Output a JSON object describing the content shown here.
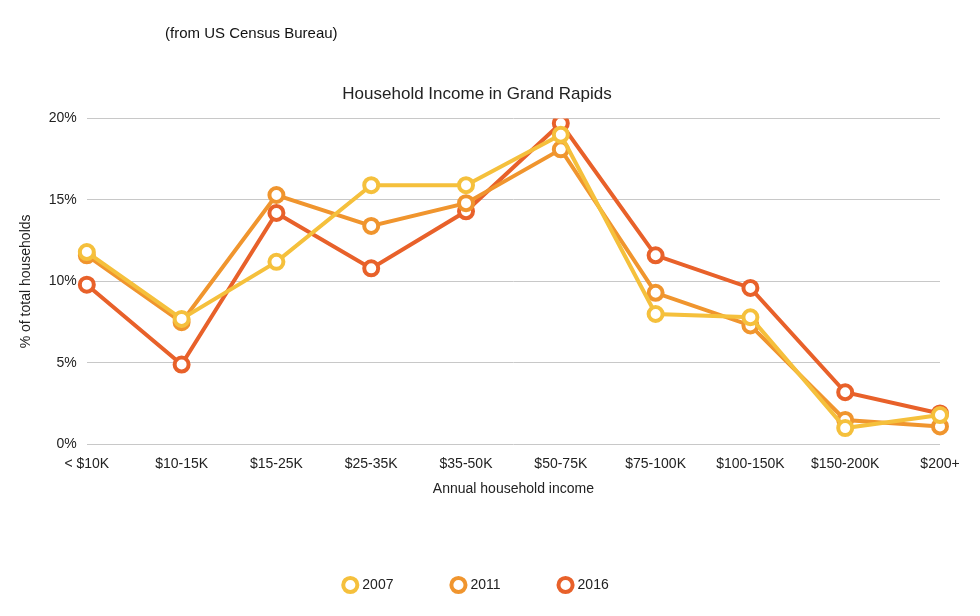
{
  "chart_data": {
    "type": "line",
    "title": "Household Income in Grand Rapids",
    "annotations": [
      "(from US Census Bureau)"
    ],
    "x_label": "Annual household income",
    "y_label": "% of total households",
    "categories": [
      "< $10K",
      "$10-15K",
      "$15-25K",
      "$25-35K",
      "$35-50K",
      "$50-75K",
      "$75-100K",
      "$100-150K",
      "$150-200K",
      "$200+"
    ],
    "series": [
      {
        "name": "2007",
        "color": "#f5c03c",
        "values": [
          11.8,
          7.7,
          11.2,
          15.9,
          15.9,
          19.0,
          8.0,
          7.8,
          1.0,
          1.8
        ]
      },
      {
        "name": "2011",
        "color": "#f0952e",
        "values": [
          11.6,
          7.5,
          15.3,
          13.4,
          14.8,
          18.1,
          9.3,
          7.3,
          1.5,
          1.1
        ]
      },
      {
        "name": "2016",
        "color": "#e8612a",
        "values": [
          9.8,
          4.9,
          14.2,
          10.8,
          14.3,
          19.7,
          11.6,
          9.6,
          3.2,
          1.9
        ]
      }
    ],
    "ylim": [
      0,
      20
    ],
    "yticks": [
      {
        "value": 0,
        "label": "0%"
      },
      {
        "value": 5,
        "label": "5%"
      },
      {
        "value": 10,
        "label": "10%"
      },
      {
        "value": 15,
        "label": "15%"
      },
      {
        "value": 20,
        "label": "20%"
      }
    ],
    "grid": true,
    "legend": "bottom",
    "marker": "circle",
    "line_style": "solid"
  }
}
